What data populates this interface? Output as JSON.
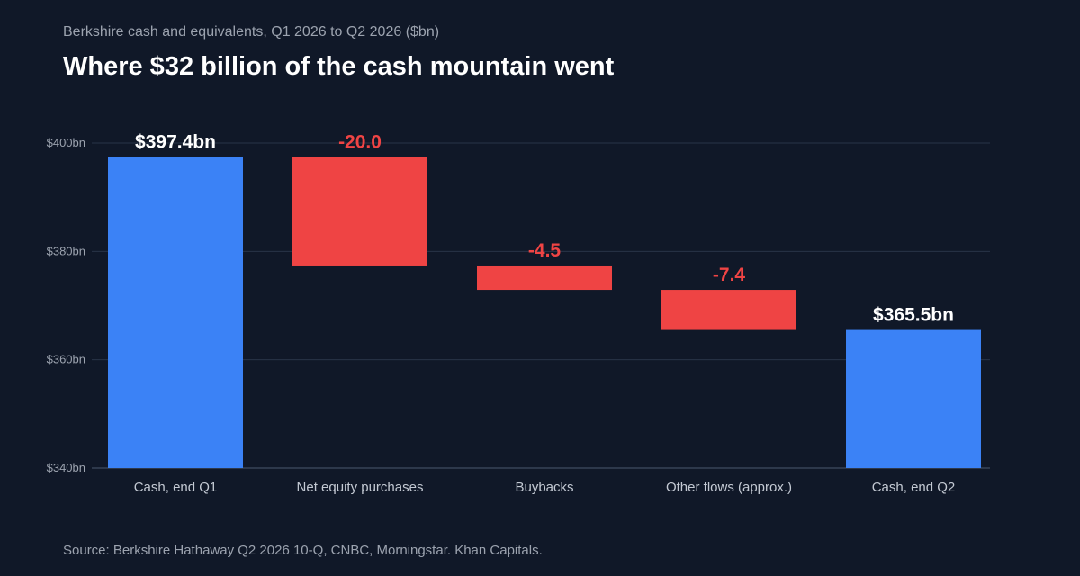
{
  "header": {
    "subtitle": "Berkshire cash and equivalents, Q1 2026 to Q2 2026 ($bn)",
    "title": "Where $32 billion of the cash mountain went"
  },
  "footer": {
    "source": "Source: Berkshire Hathaway Q2 2026 10-Q, CNBC, Morningstar. Khan Capitals."
  },
  "colors": {
    "total": "#3b82f6",
    "decrease": "#ef4444",
    "total_label": "#ffffff",
    "decrease_label": "#ef4444"
  },
  "chart_data": {
    "type": "bar",
    "subtype": "waterfall",
    "categories": [
      "Cash, end Q1",
      "Net equity purchases",
      "Buybacks",
      "Other flows (approx.)",
      "Cash, end Q2"
    ],
    "bars": [
      {
        "category": "Cash, end Q1",
        "kind": "total",
        "start": 0,
        "end": 397.4,
        "label": "$397.4bn"
      },
      {
        "category": "Net equity purchases",
        "kind": "decrease",
        "start": 397.4,
        "end": 377.4,
        "label": "-20.0"
      },
      {
        "category": "Buybacks",
        "kind": "decrease",
        "start": 377.4,
        "end": 372.9,
        "label": "-4.5"
      },
      {
        "category": "Other flows (approx.)",
        "kind": "decrease",
        "start": 372.9,
        "end": 365.5,
        "label": "-7.4"
      },
      {
        "category": "Cash, end Q2",
        "kind": "total",
        "start": 0,
        "end": 365.5,
        "label": "$365.5bn"
      }
    ],
    "ylim": [
      340,
      400
    ],
    "yticks": [
      340,
      360,
      380,
      400
    ],
    "ytick_labels": [
      "$340bn",
      "$360bn",
      "$380bn",
      "$400bn"
    ],
    "grid": true,
    "legend": false,
    "xlabel": "",
    "ylabel": ""
  }
}
